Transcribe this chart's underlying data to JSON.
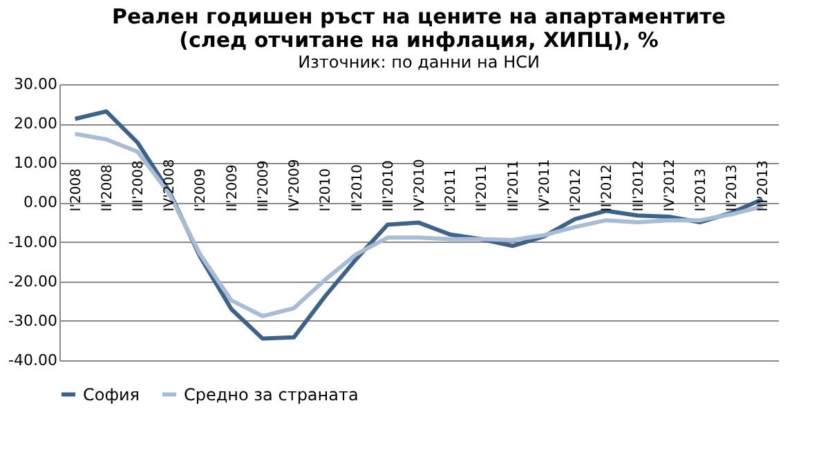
{
  "chart_data": {
    "type": "line",
    "title": [
      "Реален годишен ръст на цените на апартаментите",
      "(след отчитане на инфлация, ХИПЦ), %"
    ],
    "subtitle": "Източник: по данни на НСИ",
    "categories": [
      "I'2008",
      "II'2008",
      "III'2008",
      "IV'2008",
      "I'2009",
      "II'2009",
      "III'2009",
      "IV'2009",
      "I'2010",
      "II'2010",
      "III'2010",
      "IV'2010",
      "I'2011",
      "II'2011",
      "III'2011",
      "IV'2011",
      "I'2012",
      "II'2012",
      "III'2012",
      "IV'2012",
      "I'2013",
      "II'2013",
      "III'2013"
    ],
    "series": [
      {
        "name": "София",
        "color": "#3e6389",
        "values": [
          21.2,
          23.1,
          15.2,
          3.0,
          -13.7,
          -27.0,
          -34.5,
          -34.2,
          -23.8,
          -14.3,
          -5.6,
          -5.1,
          -8.1,
          -9.3,
          -11.0,
          -8.6,
          -4.2,
          -2.1,
          -3.3,
          -3.6,
          -5.0,
          -2.6,
          0.8
        ]
      },
      {
        "name": "Средно за страната",
        "color": "#a9bcd6",
        "values": [
          17.4,
          16.0,
          12.9,
          2.4,
          -13.1,
          -24.8,
          -28.8,
          -26.8,
          -19.6,
          -13.1,
          -8.9,
          -8.9,
          -9.3,
          -9.3,
          -9.5,
          -8.3,
          -6.2,
          -4.5,
          -5.0,
          -4.5,
          -4.5,
          -3.0,
          -1.0
        ]
      }
    ],
    "ylim": [
      -40,
      30
    ],
    "yticks": [
      {
        "value": -40,
        "label": "-40.00"
      },
      {
        "value": -30,
        "label": "-30.00"
      },
      {
        "value": -20,
        "label": "-20.00"
      },
      {
        "value": -10,
        "label": "-10.00"
      },
      {
        "value": 0,
        "label": "0.00"
      },
      {
        "value": 10,
        "label": "10.00"
      },
      {
        "value": 20,
        "label": "20.00"
      },
      {
        "value": 30,
        "label": "30.00"
      }
    ],
    "grid": "y",
    "legend": "bottom",
    "marker": "none",
    "line_style": "solid"
  }
}
